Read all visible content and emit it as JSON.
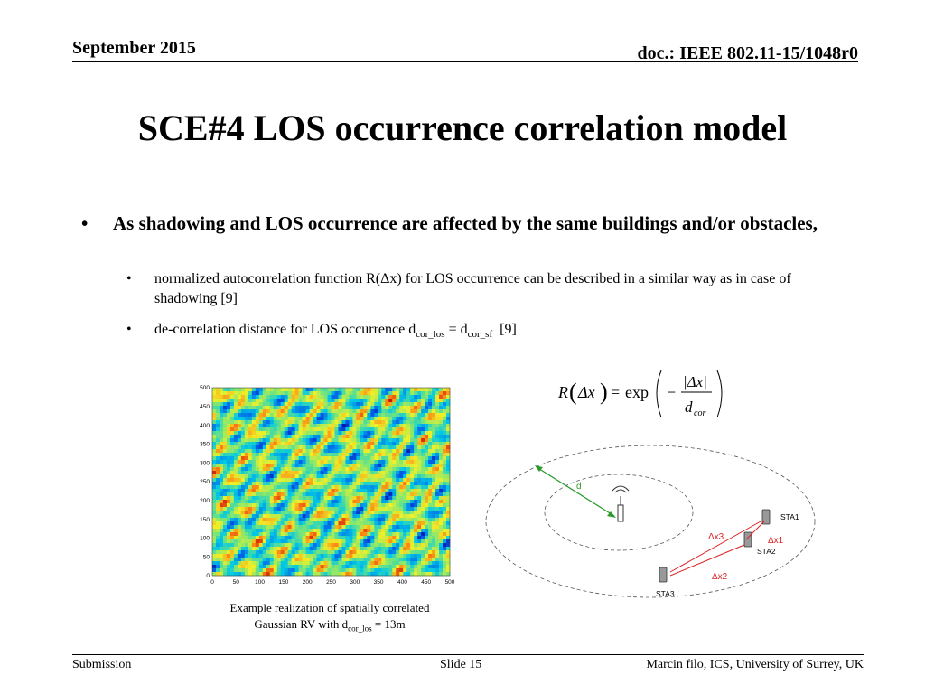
{
  "header": {
    "date": "September 2015",
    "doc": "doc.: IEEE 802.11-15/1048r0"
  },
  "title": "SCE#4 LOS occurrence correlation model",
  "bullets": {
    "main": "As shadowing and LOS occurrence are affected by the same buildings and/or obstacles,",
    "sub1": "normalized autocorrelation function R(Δx) for LOS occurrence can be described in a similar way as in case of shadowing [9]",
    "sub2_pre": "de-correlation distance for LOS occurrence d",
    "sub2_sub1": "cor_los",
    "sub2_mid": " = d",
    "sub2_sub2": "cor_sf",
    "sub2_post": "  [9]"
  },
  "formula": {
    "lhs": "R",
    "delta_x": "Δx",
    "eq": "=",
    "exp": "exp",
    "minus": "−",
    "num": "|Δx|",
    "den_d": "d",
    "den_sub": "cor"
  },
  "heatmap": {
    "y_ticks": [
      "500",
      "450",
      "400",
      "350",
      "300",
      "250",
      "200",
      "150",
      "100",
      "50",
      "0"
    ],
    "x_ticks": [
      "0",
      "50",
      "100",
      "150",
      "200",
      "250",
      "300",
      "350",
      "400",
      "450",
      "500"
    ]
  },
  "caption": {
    "line1": "Example realization of spatially correlated",
    "line2_pre": "Gaussian RV with d",
    "line2_sub": "cor_los",
    "line2_post": " = 13m"
  },
  "diagram": {
    "d": "d",
    "sta1": "STA1",
    "sta2": "STA2",
    "sta3": "STA3",
    "dx1": "Δx1",
    "dx2": "Δx2",
    "dx3": "Δx3"
  },
  "footer": {
    "left": "Submission",
    "center": "Slide 15",
    "right": "Marcin filo, ICS, University of Surrey, UK"
  }
}
